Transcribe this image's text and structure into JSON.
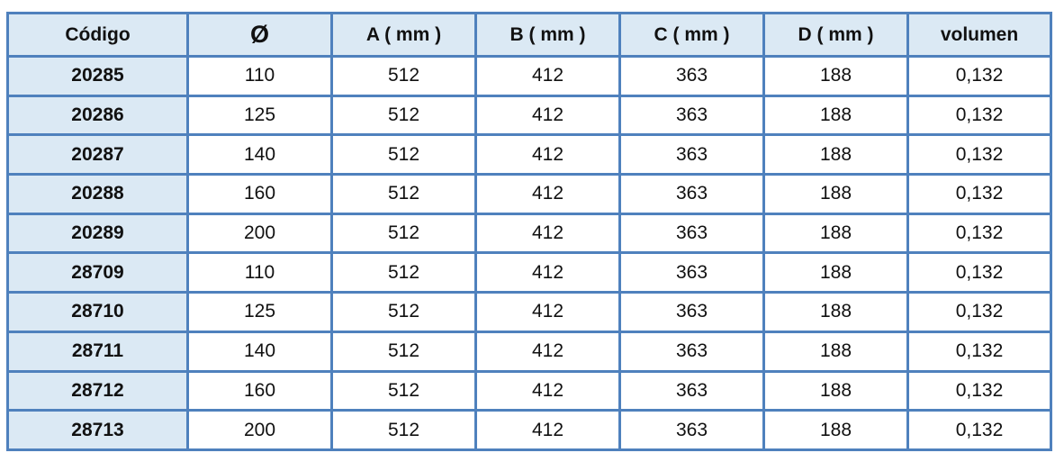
{
  "table": {
    "headers": [
      "Código",
      "Ø",
      "A ( mm )",
      "B ( mm )",
      "C ( mm )",
      "D ( mm )",
      "volumen"
    ],
    "rows": [
      [
        "20285",
        "110",
        "512",
        "412",
        "363",
        "188",
        "0,132"
      ],
      [
        "20286",
        "125",
        "512",
        "412",
        "363",
        "188",
        "0,132"
      ],
      [
        "20287",
        "140",
        "512",
        "412",
        "363",
        "188",
        "0,132"
      ],
      [
        "20288",
        "160",
        "512",
        "412",
        "363",
        "188",
        "0,132"
      ],
      [
        "20289",
        "200",
        "512",
        "412",
        "363",
        "188",
        "0,132"
      ],
      [
        "28709",
        "110",
        "512",
        "412",
        "363",
        "188",
        "0,132"
      ],
      [
        "28710",
        "125",
        "512",
        "412",
        "363",
        "188",
        "0,132"
      ],
      [
        "28711",
        "140",
        "512",
        "412",
        "363",
        "188",
        "0,132"
      ],
      [
        "28712",
        "160",
        "512",
        "412",
        "363",
        "188",
        "0,132"
      ],
      [
        "28713",
        "200",
        "512",
        "412",
        "363",
        "188",
        "0,132"
      ]
    ]
  },
  "colors": {
    "border": "#4f81bd",
    "header_bg": "#dbe9f4"
  }
}
